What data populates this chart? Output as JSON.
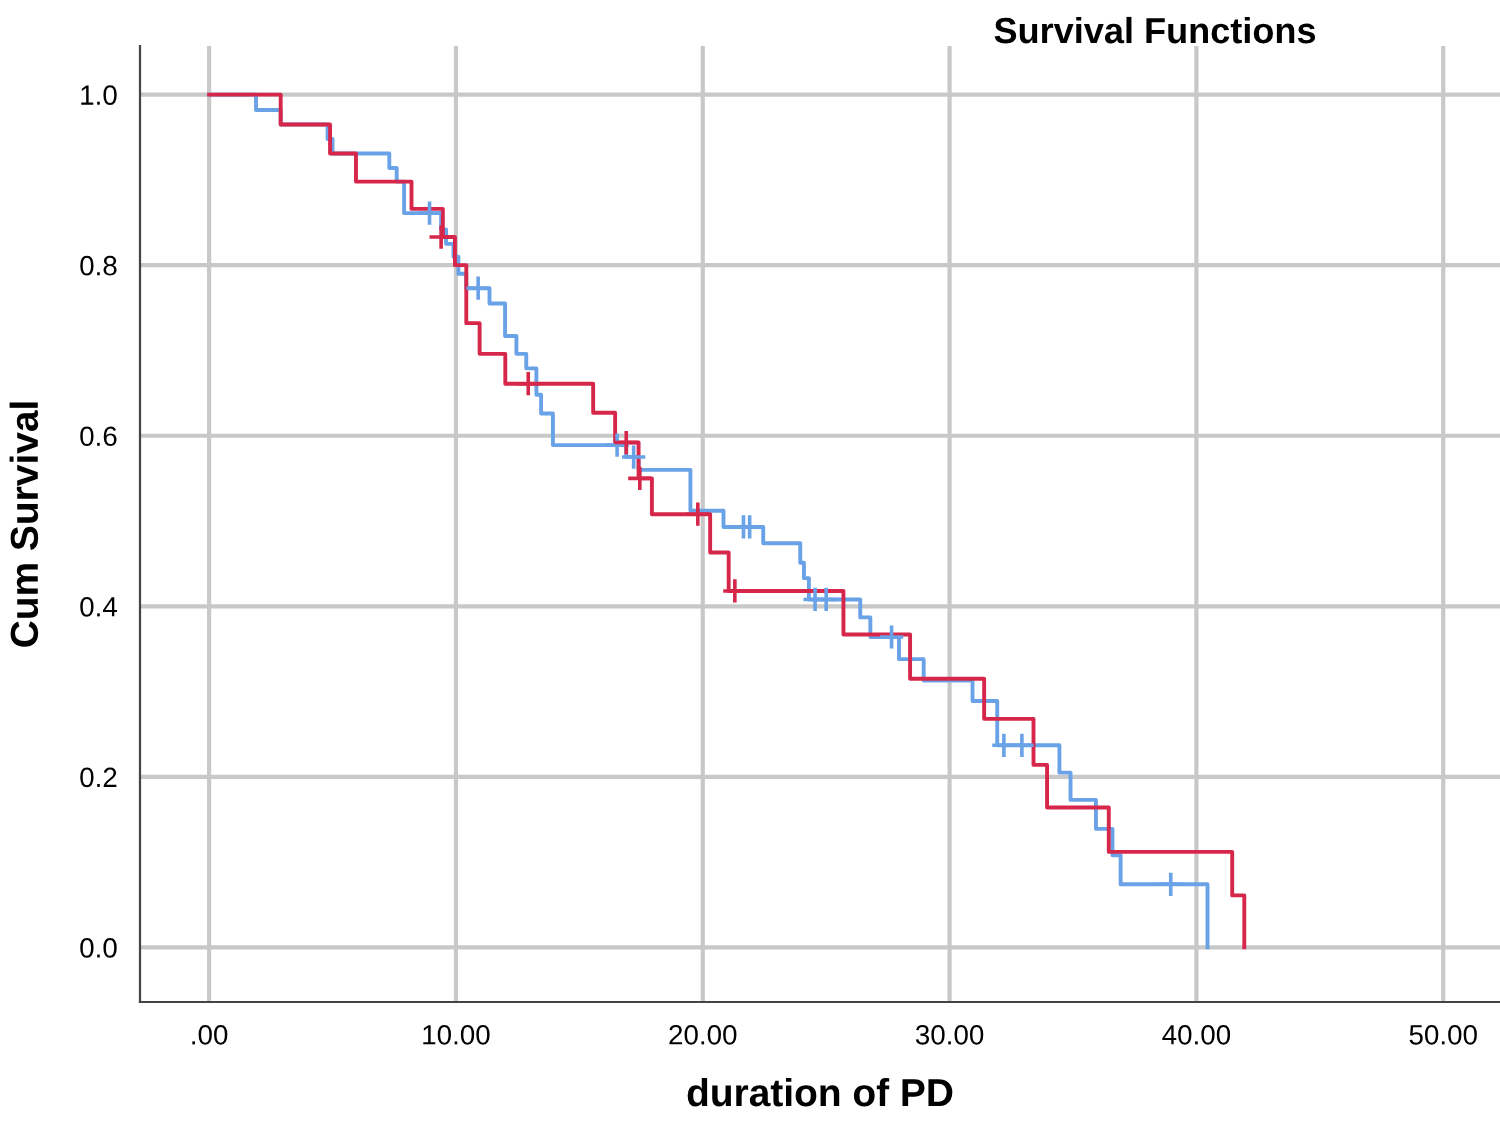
{
  "chart_data": {
    "type": "step",
    "title": "Survival Functions",
    "xlabel": "duration of PD",
    "ylabel": "Cum Survival",
    "xlim": [
      -2.8,
      52.3
    ],
    "ylim": [
      -0.064,
      1.057
    ],
    "xticks": [
      {
        "value": 0,
        "label": ".00"
      },
      {
        "value": 10,
        "label": "10.00"
      },
      {
        "value": 20,
        "label": "20.00"
      },
      {
        "value": 30,
        "label": "30.00"
      },
      {
        "value": 40,
        "label": "40.00"
      },
      {
        "value": 50,
        "label": "50.00"
      }
    ],
    "yticks": [
      {
        "value": 0,
        "label": "0.0"
      },
      {
        "value": 0.2,
        "label": "0.2"
      },
      {
        "value": 0.4,
        "label": "0.4"
      },
      {
        "value": 0.6,
        "label": "0.6"
      },
      {
        "value": 0.8,
        "label": "0.8"
      },
      {
        "value": 1,
        "label": "1.0"
      }
    ],
    "grid": true,
    "legend": false,
    "series": [
      {
        "color": "#6aa2e8",
        "x": [
          0,
          1.9,
          2.9,
          4.8,
          5.0,
          7.3,
          7.6,
          7.9,
          9.4,
          9.6,
          9.9,
          10.1,
          10.42,
          11.36,
          11.99,
          12.45,
          12.85,
          13.26,
          13.45,
          13.93,
          16.9,
          17.4,
          19.5,
          20.84,
          22.45,
          23.95,
          24.1,
          24.3,
          26.38,
          26.79,
          27.95,
          28.95,
          30.93,
          31.93,
          34.45,
          34.9,
          35.93,
          36.6,
          36.93,
          40.45
        ],
        "values": [
          1.0,
          0.982,
          0.965,
          0.948,
          0.931,
          0.914,
          0.898,
          0.861,
          0.842,
          0.825,
          0.81,
          0.79,
          0.773,
          0.755,
          0.717,
          0.696,
          0.679,
          0.648,
          0.626,
          0.589,
          0.575,
          0.56,
          0.512,
          0.493,
          0.474,
          0.451,
          0.433,
          0.408,
          0.387,
          0.364,
          0.338,
          0.313,
          0.289,
          0.237,
          0.205,
          0.173,
          0.139,
          0.108,
          0.074,
          0.0
        ]
      },
      {
        "color": "#d6274b",
        "x": [
          0,
          2.9,
          4.9,
          5.95,
          8.2,
          9.47,
          9.96,
          10.42,
          10.96,
          12.0,
          15.56,
          16.45,
          17.4,
          17.94,
          20.3,
          21.05,
          25.7,
          28.4,
          31.4,
          33.4,
          33.95,
          36.45,
          41.45,
          41.94
        ],
        "values": [
          1.0,
          0.965,
          0.931,
          0.898,
          0.866,
          0.833,
          0.8,
          0.732,
          0.696,
          0.661,
          0.627,
          0.592,
          0.55,
          0.508,
          0.463,
          0.418,
          0.367,
          0.315,
          0.268,
          0.214,
          0.164,
          0.112,
          0.061,
          0.0
        ]
      },
      {
        "type": "scatter",
        "marker": "cross",
        "color": "#6aa2e8",
        "x": [
          8.93,
          10.9,
          16.53,
          17.2,
          21.65,
          21.9,
          24.55,
          25.0,
          27.65,
          32.2,
          32.93,
          38.96
        ],
        "values": [
          0.861,
          0.773,
          0.589,
          0.575,
          0.493,
          0.493,
          0.408,
          0.408,
          0.364,
          0.237,
          0.237,
          0.074
        ]
      },
      {
        "type": "scatter",
        "marker": "cross",
        "color": "#d6274b",
        "x": [
          9.4,
          12.93,
          16.9,
          17.45,
          19.8,
          21.3
        ],
        "values": [
          0.833,
          0.661,
          0.592,
          0.55,
          0.508,
          0.418
        ]
      }
    ]
  }
}
